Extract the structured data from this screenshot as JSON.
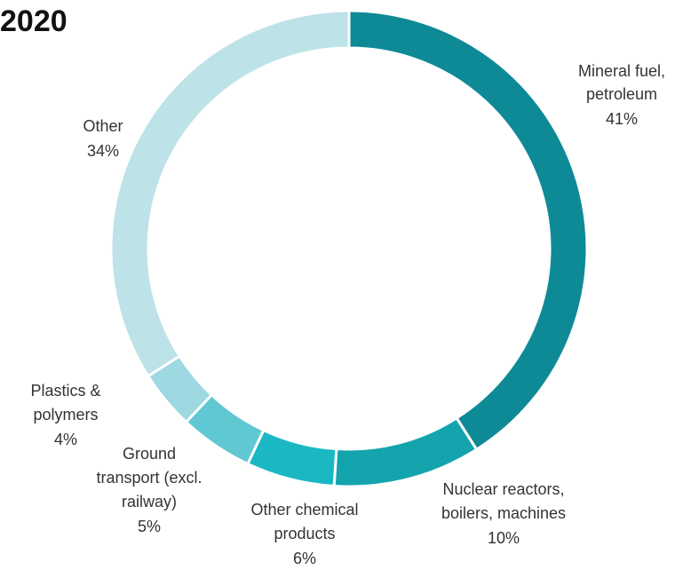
{
  "title": "2020",
  "chart_data": {
    "type": "pie",
    "donut": true,
    "title": "2020",
    "categories": [
      "Mineral fuel, petroleum",
      "Nuclear reactors, boilers, machines",
      "Other chemical products",
      "Ground transport (excl. railway)",
      "Plastics & polymers",
      "Other"
    ],
    "values": [
      41,
      10,
      6,
      5,
      4,
      34
    ],
    "value_labels": [
      "41%",
      "10%",
      "6%",
      "5%",
      "4%",
      "34%"
    ],
    "colors": [
      "#0e8a96",
      "#14a4ae",
      "#1bb8c4",
      "#5fc8d2",
      "#9ed8e0",
      "#bde2e8"
    ]
  }
}
